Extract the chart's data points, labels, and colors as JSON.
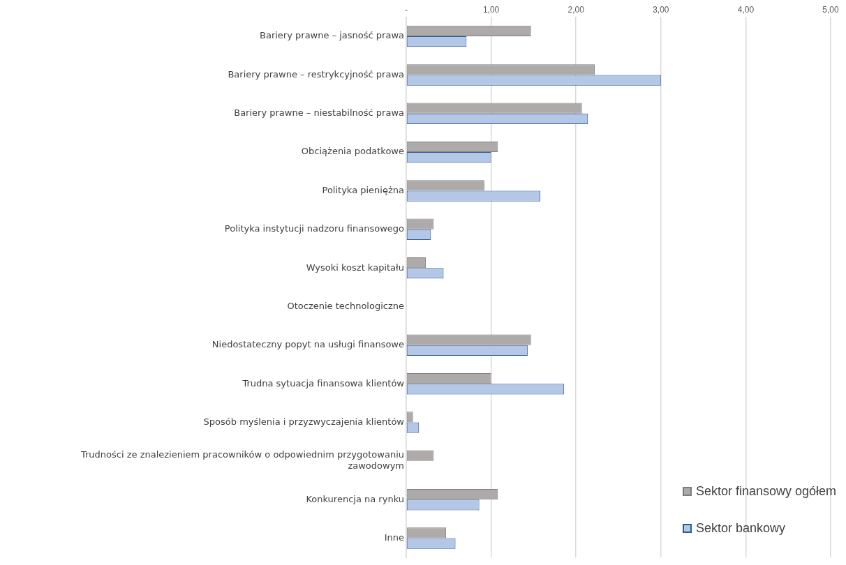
{
  "chart_data": {
    "type": "bar",
    "orientation": "horizontal",
    "categories": [
      "Bariery prawne – jasność prawa",
      "Bariery prawne – restrykcyjność prawa",
      "Bariery prawne – niestabilność prawa",
      "Obciążenia podatkowe",
      "Polityka pieniężna",
      "Polityka instytucji nadzoru finansowego",
      "Wysoki koszt kapitału",
      "Otoczenie technologiczne",
      "Niedostateczny popyt na usługi finansowe",
      "Trudna sytuacja finansowa klientów",
      "Sposób myślenia i przyzwyczajenia klientów",
      "Trudności ze znalezieniem pracowników o odpowiednim przygotowaniu zawodowym",
      "Konkurencja na rynku",
      "Inne"
    ],
    "series": [
      {
        "name": "Sektor finansowy ogółem",
        "color": "#aeaaaa",
        "values": [
          1.47,
          2.22,
          2.07,
          1.08,
          0.92,
          0.32,
          0.23,
          null,
          1.47,
          1.0,
          0.08,
          0.32,
          1.08,
          0.47
        ]
      },
      {
        "name": "Sektor bankowy",
        "color": "#b4c7e7",
        "values": [
          0.71,
          3.0,
          2.14,
          1.0,
          1.58,
          0.29,
          0.44,
          null,
          1.43,
          1.86,
          0.15,
          null,
          0.86,
          0.58
        ]
      }
    ],
    "xlim": [
      0,
      5
    ],
    "xticks": [
      {
        "value": 0,
        "label": "-"
      },
      {
        "value": 1,
        "label": "1,00"
      },
      {
        "value": 2,
        "label": "2,00"
      },
      {
        "value": 3,
        "label": "3,00"
      },
      {
        "value": 4,
        "label": "4,00"
      },
      {
        "value": 5,
        "label": "5,00"
      }
    ],
    "grid": "x",
    "legend": "bottom right"
  }
}
